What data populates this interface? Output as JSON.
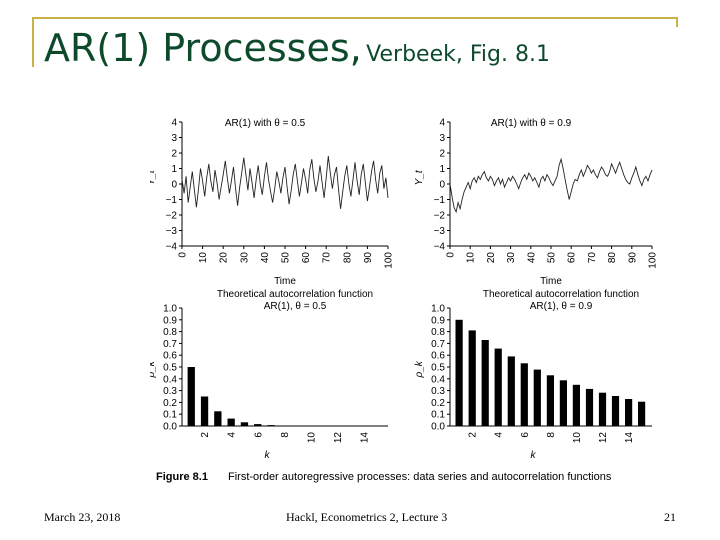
{
  "slide": {
    "title": "AR(1) Processes,",
    "subtitle": "Verbeek, Fig. 8.1",
    "footer_date": "March 23, 2018",
    "footer_center": "Hackl, Econometrics 2, Lecture 3",
    "page_number": "21"
  },
  "figure": {
    "caption_label": "Figure 8.1",
    "caption_text": "First-order autoregressive processes: data series and autocorrelation functions"
  },
  "chart_data": [
    {
      "type": "line",
      "title": "AR(1) with θ = 0.5",
      "xlabel": "Time",
      "ylabel": "Y_t",
      "xlim": [
        0,
        100
      ],
      "ylim": [
        -4,
        4
      ],
      "x_ticks": [
        "0",
        "10",
        "20",
        "30",
        "40",
        "50",
        "60",
        "70",
        "80",
        "90",
        "100"
      ],
      "y_ticks": [
        "4",
        "3",
        "2",
        "1",
        "0",
        "−1",
        "−2",
        "−3",
        "−4"
      ],
      "series": [
        {
          "values": [
            0.3,
            -0.6,
            0.5,
            -1.2,
            -0.2,
            0.8,
            -0.4,
            -1.5,
            -0.3,
            1.0,
            0.2,
            -0.8,
            0.4,
            1.3,
            0.2,
            -0.5,
            0.9,
            0.1,
            -1.0,
            -0.2,
            0.6,
            1.5,
            0.4,
            -0.6,
            0.2,
            1.1,
            -0.3,
            -1.4,
            -0.2,
            0.7,
            1.7,
            0.6,
            -0.4,
            1.0,
            0.1,
            -0.9,
            0.3,
            1.2,
            0.0,
            -0.7,
            0.5,
            1.4,
            0.3,
            -0.5,
            -1.2,
            -0.3,
            0.8,
            0.2,
            -0.6,
            0.4,
            1.1,
            -0.2,
            -1.3,
            -0.4,
            0.6,
            1.3,
            0.2,
            -0.8,
            0.1,
            1.0,
            0.3,
            -0.6,
            0.9,
            1.6,
            0.4,
            -0.5,
            0.2,
            1.2,
            0.1,
            -0.9,
            0.4,
            1.8,
            0.7,
            -0.3,
            0.6,
            1.1,
            -0.4,
            -1.6,
            -0.5,
            0.5,
            1.2,
            0.0,
            -0.8,
            0.3,
            1.4,
            0.2,
            -0.7,
            0.6,
            1.3,
            0.1,
            -1.1,
            -0.2,
            0.8,
            1.5,
            0.3,
            -0.6,
            0.7,
            1.2,
            -0.3,
            0.4,
            -0.9
          ]
        }
      ]
    },
    {
      "type": "line",
      "title": "AR(1) with θ = 0.9",
      "xlabel": "Time",
      "ylabel": "Y_t",
      "xlim": [
        0,
        100
      ],
      "ylim": [
        -4,
        4
      ],
      "x_ticks": [
        "0",
        "10",
        "20",
        "30",
        "40",
        "50",
        "60",
        "70",
        "80",
        "90",
        "100"
      ],
      "y_ticks": [
        "4",
        "3",
        "2",
        "1",
        "0",
        "−1",
        "−2",
        "−3",
        "−4"
      ],
      "series": [
        {
          "values": [
            0.0,
            -0.8,
            -1.5,
            -1.8,
            -1.2,
            -1.6,
            -1.0,
            -0.5,
            -0.2,
            0.1,
            -0.3,
            0.2,
            0.4,
            0.1,
            0.5,
            0.3,
            0.6,
            0.8,
            0.4,
            0.2,
            0.5,
            0.3,
            -0.1,
            0.2,
            0.4,
            0.0,
            0.3,
            -0.2,
            0.1,
            0.4,
            0.2,
            0.5,
            0.3,
            0.0,
            -0.3,
            0.1,
            0.4,
            0.6,
            0.3,
            0.7,
            0.5,
            0.2,
            0.4,
            0.1,
            -0.2,
            0.3,
            0.5,
            0.2,
            0.6,
            0.4,
            0.1,
            -0.1,
            0.2,
            0.5,
            1.2,
            1.6,
            1.0,
            0.3,
            -0.4,
            -1.0,
            -0.5,
            0.0,
            0.3,
            0.2,
            0.6,
            0.9,
            0.5,
            0.8,
            1.2,
            1.0,
            0.7,
            0.9,
            0.6,
            0.4,
            0.8,
            1.1,
            0.9,
            0.6,
            0.5,
            0.8,
            1.3,
            1.0,
            0.7,
            1.1,
            1.4,
            1.0,
            0.6,
            0.3,
            0.1,
            0.0,
            0.4,
            0.7,
            1.1,
            0.6,
            0.2,
            -0.1,
            0.3,
            0.5,
            0.2,
            0.6,
            0.9
          ]
        }
      ]
    },
    {
      "type": "bar",
      "title": "Theoretical autocorrelation function: AR(1), θ = 0.5",
      "xlabel": "k",
      "ylabel": "ρ_k",
      "ylim": [
        0,
        1.0
      ],
      "y_ticks": [
        "1.0",
        "0.9",
        "0.8",
        "0.7",
        "0.6",
        "0.5",
        "0.4",
        "0.3",
        "0.2",
        "0.1",
        "0.0"
      ],
      "x_tick_labels": [
        "2",
        "4",
        "6",
        "8",
        "10",
        "12",
        "14"
      ],
      "categories": [
        "1",
        "2",
        "3",
        "4",
        "5",
        "6",
        "7",
        "8",
        "9",
        "10",
        "11",
        "12",
        "13",
        "14",
        "15"
      ],
      "values": [
        0.5,
        0.25,
        0.125,
        0.0625,
        0.031,
        0.016,
        0.008,
        0.004,
        0.002,
        0.001,
        0.0005,
        0.0002,
        0.0001,
        0.0001,
        0.0
      ]
    },
    {
      "type": "bar",
      "title": "Theoretical autocorrelation function: AR(1), θ = 0.9",
      "xlabel": "k",
      "ylabel": "ρ_k",
      "ylim": [
        0,
        1.0
      ],
      "y_ticks": [
        "1.0",
        "0.9",
        "0.8",
        "0.7",
        "0.6",
        "0.5",
        "0.4",
        "0.3",
        "0.2",
        "0.1",
        "0.0"
      ],
      "x_tick_labels": [
        "2",
        "4",
        "6",
        "8",
        "10",
        "12",
        "14"
      ],
      "categories": [
        "1",
        "2",
        "3",
        "4",
        "5",
        "6",
        "7",
        "8",
        "9",
        "10",
        "11",
        "12",
        "13",
        "14",
        "15"
      ],
      "values": [
        0.9,
        0.81,
        0.729,
        0.656,
        0.59,
        0.531,
        0.478,
        0.43,
        0.387,
        0.349,
        0.314,
        0.282,
        0.254,
        0.229,
        0.206
      ]
    }
  ]
}
